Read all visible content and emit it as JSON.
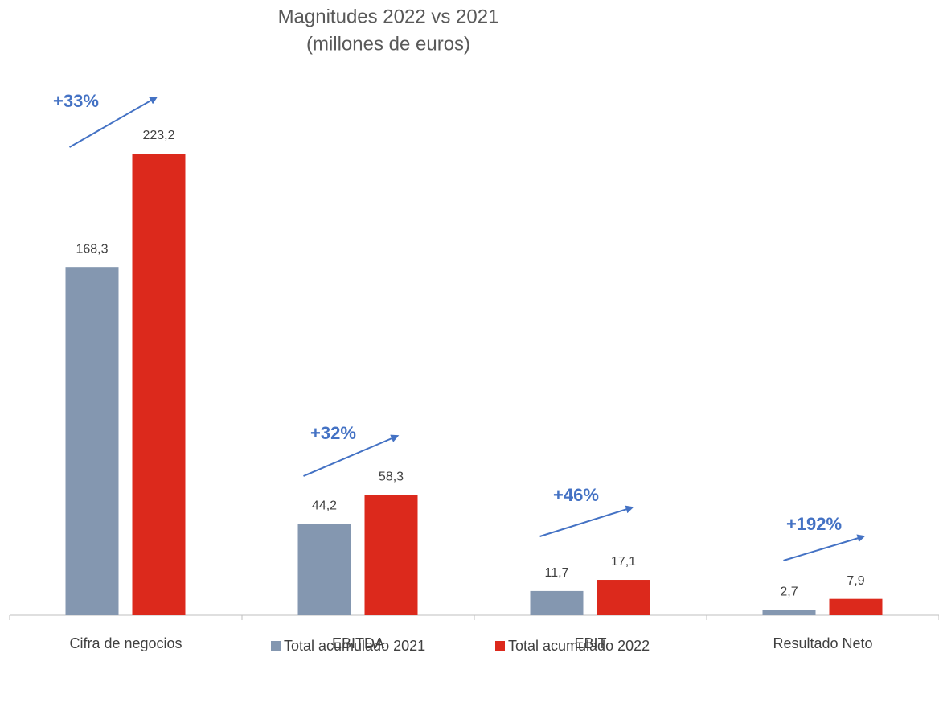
{
  "chart_data": {
    "type": "bar",
    "title": "Magnitudes 2022 vs 2021",
    "subtitle": "(millones de euros)",
    "categories": [
      "Cifra de negocios",
      "EBITDA",
      "EBIT",
      "Resultado Neto"
    ],
    "series": [
      {
        "name": "Total acumulado 2021",
        "color": "#8497b0",
        "values": [
          168.3,
          44.2,
          11.7,
          2.7
        ],
        "value_labels": [
          "168,3",
          "44,2",
          "11,7",
          "2,7"
        ]
      },
      {
        "name": "Total acumulado 2022",
        "color": "#dc291c",
        "values": [
          223.2,
          58.3,
          17.1,
          7.9
        ],
        "value_labels": [
          "223,2",
          "58,3",
          "17,1",
          "7,9"
        ]
      }
    ],
    "annotations": [
      "+33%",
      "+32%",
      "+46%",
      "+192%"
    ],
    "annotation_color": "#4472c4",
    "legend": "bottom"
  }
}
